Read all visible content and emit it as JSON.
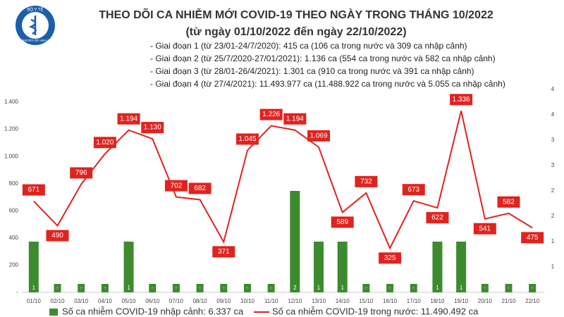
{
  "logo": {
    "top": "BỘ Y TẾ",
    "bottom": "MINISTRY OF HEALTH"
  },
  "chart_data": {
    "type": "combo",
    "title": "THEO DÕI CA NHIỄM MỚI COVID-19 THEO NGÀY TRONG THÁNG 10/2022",
    "subtitle": "(từ ngày 01/10/2022 đến ngày 22/10/2022)",
    "annotations": [
      "- Giai đoạn 1 (từ 23/01-24/7/2020): 415 ca (106 ca trong nước và 309 ca nhập cảnh)",
      "- Giai đoạn 2 (từ 25/7/2020-27/01/2021): 1.136 ca (554 ca trong nước và 582 ca nhập cảnh)",
      "- Giai đoạn 3 (từ 28/01-26/4/2021): 1.301 ca (910 ca trong nước và 391 ca nhập cảnh)",
      "- Giai đoạn 4 (từ 27/4/2021): 11.493.977 ca (11.488.922 ca trong nước và 5.055 ca nhập cảnh)"
    ],
    "categories": [
      "01/10",
      "02/10",
      "03/10",
      "04/10",
      "05/10",
      "06/10",
      "07/10",
      "08/10",
      "09/10",
      "10/10",
      "11/10",
      "12/10",
      "13/10",
      "14/10",
      "15/10",
      "16/10",
      "17/10",
      "18/10",
      "19/10",
      "20/10",
      "21/10",
      "22/10"
    ],
    "series": [
      {
        "name": "Số ca nhiễm COVID-19 nhập cảnh: 6.337 ca",
        "type": "bar",
        "axis": "y2",
        "color": "#3d8b2f",
        "values": [
          1,
          0,
          0,
          0,
          1,
          0,
          0,
          0,
          0,
          0,
          0,
          2,
          1,
          1,
          0,
          0,
          0,
          1,
          1,
          0,
          0,
          0
        ],
        "value_labels": [
          "1",
          "-",
          "-",
          "-",
          "1",
          "-",
          "-",
          "-",
          "-",
          "-",
          "-",
          "2",
          "1",
          "1",
          "-",
          "-",
          "-",
          "1",
          "1",
          "-",
          "-",
          "-"
        ]
      },
      {
        "name": "Số ca nhiễm COVID-19 trong nước: 11.490.492 ca",
        "type": "line",
        "color": "#e0231f",
        "values": [
          671,
          490,
          796,
          1020,
          1194,
          1130,
          702,
          682,
          371,
          1045,
          1226,
          1194,
          1069,
          589,
          732,
          325,
          673,
          622,
          1336,
          541,
          582,
          475
        ],
        "value_labels": [
          "671",
          "490",
          "796",
          "1.020",
          "1.194",
          "1.130",
          "702",
          "682",
          "371",
          "1.045",
          "1.226",
          "1.194",
          "1.069",
          "589",
          "732",
          "325",
          "673",
          "622",
          "1.336",
          "541",
          "582",
          "475"
        ]
      }
    ],
    "ylim": [
      0,
      1400
    ],
    "yticks": [
      {
        "value": 0,
        "label": "-"
      },
      200,
      400,
      600,
      800,
      {
        "value": 1000,
        "label": "1.000"
      },
      {
        "value": 1200,
        "label": "1.200"
      },
      {
        "value": 1400,
        "label": "1.400"
      }
    ],
    "y2lim": [
      0,
      3.75
    ],
    "y2ticks": [
      {
        "value": 0.5,
        "label": "1"
      },
      {
        "value": 1,
        "label": "1"
      },
      {
        "value": 1.5,
        "label": "2"
      },
      2,
      {
        "value": 2.5,
        "label": "3"
      },
      3,
      {
        "value": 3.5,
        "label": "4"
      },
      4
    ],
    "grid": false
  }
}
